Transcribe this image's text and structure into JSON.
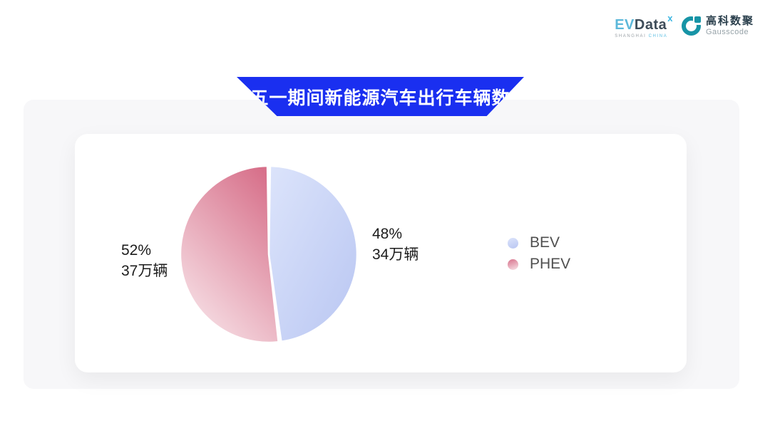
{
  "header": {
    "evdata_logo": {
      "ev": "EV",
      "data": "Data",
      "sup": "x",
      "sub1": "SHANGHAI",
      "sub2": "CHINA"
    },
    "gausscode_logo": {
      "cn": "高科数聚",
      "en": "Gausscode",
      "icon_color": "#1794a6"
    }
  },
  "banner": {
    "title": "五一期间新能源汽车出行车辆数",
    "color": "#1a2ff0",
    "text_color": "#ffffff"
  },
  "chart_data": {
    "type": "pie",
    "title": "五一期间新能源汽车出行车辆数",
    "unit": "万辆",
    "start_angle": "top",
    "direction": "clockwise",
    "legend_position": "right",
    "slices": [
      {
        "name": "BEV",
        "percent": 48,
        "value": 34,
        "percent_label": "48%",
        "value_label": "34万辆",
        "color_start": "#dce4fb",
        "color_end": "#b9c6f2"
      },
      {
        "name": "PHEV",
        "percent": 52,
        "value": 37,
        "percent_label": "52%",
        "value_label": "37万辆",
        "color_start": "#d7708a",
        "color_end": "#f8e4e9"
      }
    ]
  },
  "colors": {
    "panel_bg": "#f7f7f9",
    "card_bg": "#ffffff"
  }
}
